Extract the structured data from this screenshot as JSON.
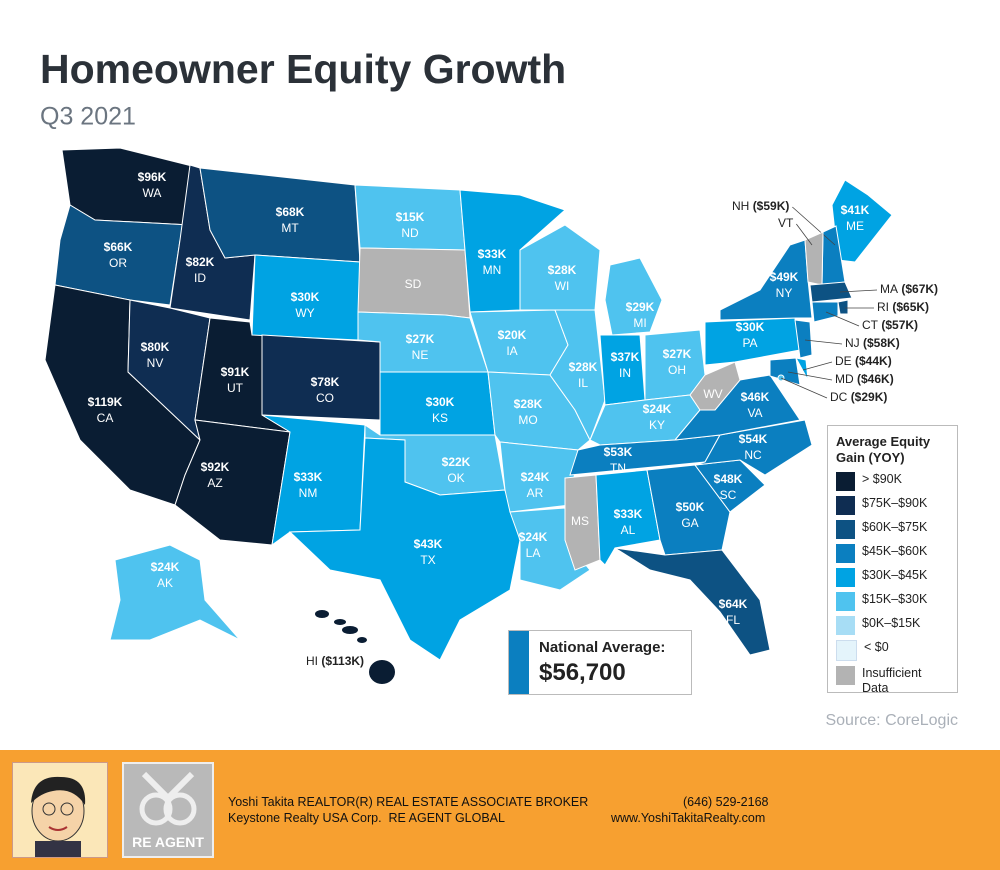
{
  "header": {
    "title": "Homeowner Equity Growth",
    "subtitle": "Q3 2021"
  },
  "map": {
    "states": [
      {
        "abbr": "WA",
        "value": "$96K",
        "color": "#0a1d33"
      },
      {
        "abbr": "OR",
        "value": "$66K",
        "color": "#0d5283"
      },
      {
        "abbr": "CA",
        "value": "$119K",
        "color": "#0a1d33"
      },
      {
        "abbr": "ID",
        "value": "$82K",
        "color": "#0f2d52"
      },
      {
        "abbr": "NV",
        "value": "$80K",
        "color": "#0f2d52"
      },
      {
        "abbr": "UT",
        "value": "$91K",
        "color": "#0a1d33"
      },
      {
        "abbr": "AZ",
        "value": "$92K",
        "color": "#0a1d33"
      },
      {
        "abbr": "MT",
        "value": "$68K",
        "color": "#0d5283"
      },
      {
        "abbr": "WY",
        "value": "$30K",
        "color": "#00a3e3"
      },
      {
        "abbr": "CO",
        "value": "$78K",
        "color": "#0f2d52"
      },
      {
        "abbr": "NM",
        "value": "$33K",
        "color": "#00a3e3"
      },
      {
        "abbr": "ND",
        "value": "$15K",
        "color": "#4fc3ef"
      },
      {
        "abbr": "SD",
        "color": "#b3b3b3"
      },
      {
        "abbr": "NE",
        "value": "$27K",
        "color": "#4fc3ef"
      },
      {
        "abbr": "KS",
        "value": "$30K",
        "color": "#00a3e3"
      },
      {
        "abbr": "OK",
        "value": "$22K",
        "color": "#4fc3ef"
      },
      {
        "abbr": "TX",
        "value": "$43K",
        "color": "#00a3e3"
      },
      {
        "abbr": "MN",
        "value": "$33K",
        "color": "#00a3e3"
      },
      {
        "abbr": "IA",
        "value": "$20K",
        "color": "#4fc3ef"
      },
      {
        "abbr": "MO",
        "value": "$28K",
        "color": "#4fc3ef"
      },
      {
        "abbr": "AR",
        "value": "$24K",
        "color": "#4fc3ef"
      },
      {
        "abbr": "LA",
        "value": "$24K",
        "color": "#4fc3ef"
      },
      {
        "abbr": "WI",
        "value": "$28K",
        "color": "#4fc3ef"
      },
      {
        "abbr": "IL",
        "value": "$28K",
        "color": "#4fc3ef"
      },
      {
        "abbr": "MI",
        "value": "$29K",
        "color": "#4fc3ef"
      },
      {
        "abbr": "IN",
        "value": "$37K",
        "color": "#00a3e3"
      },
      {
        "abbr": "OH",
        "value": "$27K",
        "color": "#4fc3ef"
      },
      {
        "abbr": "KY",
        "value": "$24K",
        "color": "#4fc3ef"
      },
      {
        "abbr": "TN",
        "value": "$53K",
        "color": "#0b7fc0"
      },
      {
        "abbr": "MS",
        "color": "#b3b3b3"
      },
      {
        "abbr": "AL",
        "value": "$33K",
        "color": "#00a3e3"
      },
      {
        "abbr": "GA",
        "value": "$50K",
        "color": "#0b7fc0"
      },
      {
        "abbr": "FL",
        "value": "$64K",
        "color": "#0d5283"
      },
      {
        "abbr": "SC",
        "value": "$48K",
        "color": "#0b7fc0"
      },
      {
        "abbr": "NC",
        "value": "$54K",
        "color": "#0b7fc0"
      },
      {
        "abbr": "VA",
        "value": "$46K",
        "color": "#0b7fc0"
      },
      {
        "abbr": "WV",
        "color": "#b3b3b3"
      },
      {
        "abbr": "PA",
        "value": "$30K",
        "color": "#00a3e3"
      },
      {
        "abbr": "NY",
        "value": "$49K",
        "color": "#0b7fc0"
      },
      {
        "abbr": "ME",
        "value": "$41K",
        "color": "#00a3e3"
      },
      {
        "abbr": "AK",
        "value": "$24K",
        "color": "#4fc3ef"
      }
    ],
    "callouts": [
      {
        "abbr": "NH",
        "value": "($59K)",
        "color": "#0b7fc0"
      },
      {
        "abbr": "VT",
        "color": "#b3b3b3"
      },
      {
        "abbr": "MA",
        "value": "($67K)",
        "color": "#0d5283"
      },
      {
        "abbr": "RI",
        "value": "($65K)",
        "color": "#0d5283"
      },
      {
        "abbr": "CT",
        "value": "($57K)",
        "color": "#0b7fc0"
      },
      {
        "abbr": "NJ",
        "value": "($58K)",
        "color": "#0b7fc0"
      },
      {
        "abbr": "DE",
        "value": "($44K)",
        "color": "#00a3e3"
      },
      {
        "abbr": "MD",
        "value": "($46K)",
        "color": "#0b7fc0"
      },
      {
        "abbr": "DC",
        "value": "($29K)",
        "color": "#4fc3ef"
      },
      {
        "abbr": "HI",
        "value": "($113K)",
        "color": "#0a1d33"
      }
    ]
  },
  "legend": {
    "title": "Average Equity Gain (YOY)",
    "items": [
      {
        "label": "> $90K",
        "color": "#0a1d33"
      },
      {
        "label": "$75K–$90K",
        "color": "#0f2d52"
      },
      {
        "label": "$60K–$75K",
        "color": "#0d5283"
      },
      {
        "label": "$45K–$60K",
        "color": "#0b7fc0"
      },
      {
        "label": "$30K–$45K",
        "color": "#00a3e3"
      },
      {
        "label": "$15K–$30K",
        "color": "#4fc3ef"
      },
      {
        "label": "$0K–$15K",
        "color": "#a7ddf5"
      },
      {
        "label": "< $0",
        "color": "#e4f4fb"
      },
      {
        "label": "Insufficient Data",
        "color": "#b3b3b3"
      }
    ]
  },
  "national": {
    "label": "National Average:",
    "value": "$56,700"
  },
  "source": "Source: CoreLogic",
  "footer": {
    "name": "Yoshi Takita REALTOR(R) REAL ESTATE ASSOCIATE BROKER",
    "phone": "(646) 529-2168",
    "company": "Keystone Realty USA Corp.  RE AGENT GLOBAL",
    "website": "www.YoshiTakitaRealty.com",
    "logo": "RE AGENT"
  }
}
